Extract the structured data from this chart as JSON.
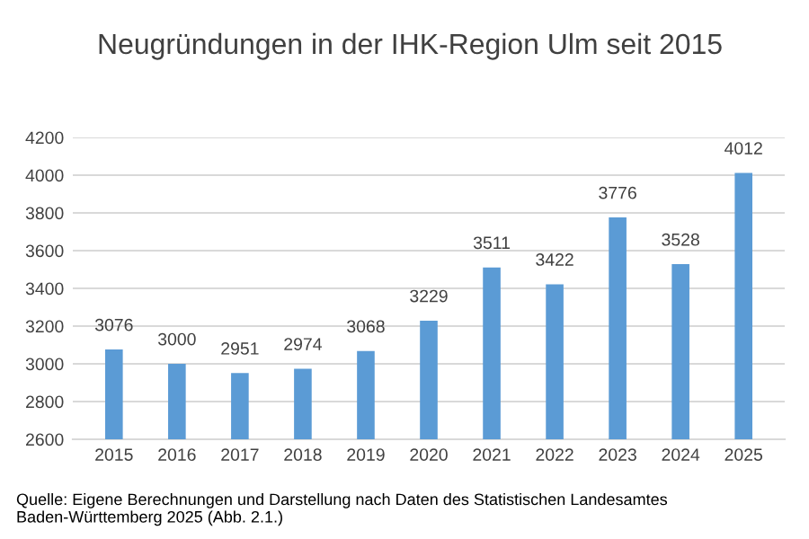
{
  "chart_data": {
    "type": "bar",
    "title": "Neugründungen in der IHK-Region Ulm seit 2015",
    "categories": [
      "2015",
      "2016",
      "2017",
      "2018",
      "2019",
      "2020",
      "2021",
      "2022",
      "2023",
      "2024",
      "2025"
    ],
    "values": [
      3076,
      3000,
      2951,
      2974,
      3068,
      3229,
      3511,
      3422,
      3776,
      3528,
      4012
    ],
    "color": "#5b9bd5",
    "ylim": [
      2600,
      4200
    ],
    "yticks": [
      2600,
      2800,
      3000,
      3200,
      3400,
      3600,
      3800,
      4000,
      4200
    ],
    "grid": "y",
    "data_labels": true,
    "annotations": [
      "Quelle: Eigene Berechnungen und Darstellung nach Daten des Statistischen Landesamtes Baden-Württemberg 2025 (Abb. 2.1.)"
    ]
  }
}
